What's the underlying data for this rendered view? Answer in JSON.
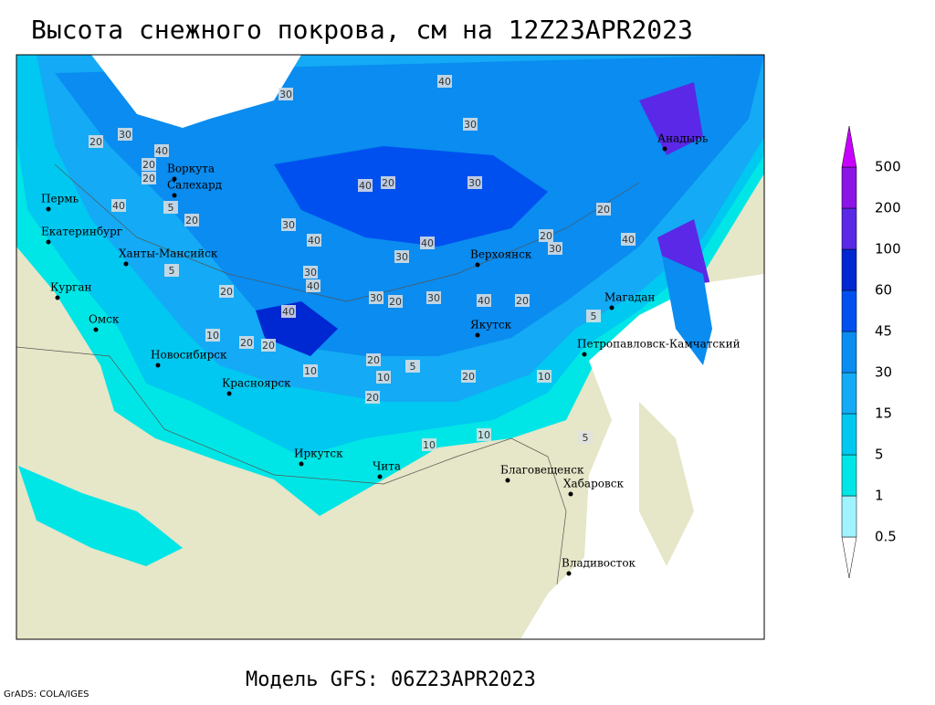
{
  "header": {
    "title": "Высота снежного покрова, см на 12Z23APR2023"
  },
  "cities": [
    "Пермь",
    "Екатеринбург",
    "Курган",
    "Омск",
    "Ханты-Мансийск",
    "Воркута",
    "Салехард",
    "Новосибирск",
    "Красноярск",
    "Иркутск",
    "Чита",
    "Верхоянск",
    "Якутск",
    "Магадан",
    "Анадырь",
    "Петропавловск-Камчатский",
    "Благовещенск",
    "Хабаровск",
    "Владивосток"
  ],
  "contour_labels": [
    20,
    30,
    40,
    20,
    20,
    30,
    40,
    30,
    20,
    30,
    40,
    30,
    40,
    5,
    20,
    40,
    20,
    30,
    40,
    40,
    30,
    20,
    30,
    40,
    20,
    30,
    40,
    20,
    30,
    20,
    20,
    20,
    10,
    10,
    5,
    10,
    5,
    20,
    20,
    10,
    5,
    10,
    40,
    5,
    20,
    10
  ],
  "legend": {
    "levels": [
      0.5,
      1,
      5,
      15,
      30,
      45,
      60,
      100,
      200,
      500
    ],
    "colors": [
      "#ffffff",
      "#a0f4ff",
      "#00e6e6",
      "#00c8f0",
      "#14aaf5",
      "#0a8cf0",
      "#0050f0",
      "#0028d2",
      "#5a28e6",
      "#8c14e6",
      "#c800ff"
    ]
  },
  "footer": {
    "model": "Модель GFS: 06Z23APR2023",
    "credit": "GrADS: COLA/IGES"
  }
}
